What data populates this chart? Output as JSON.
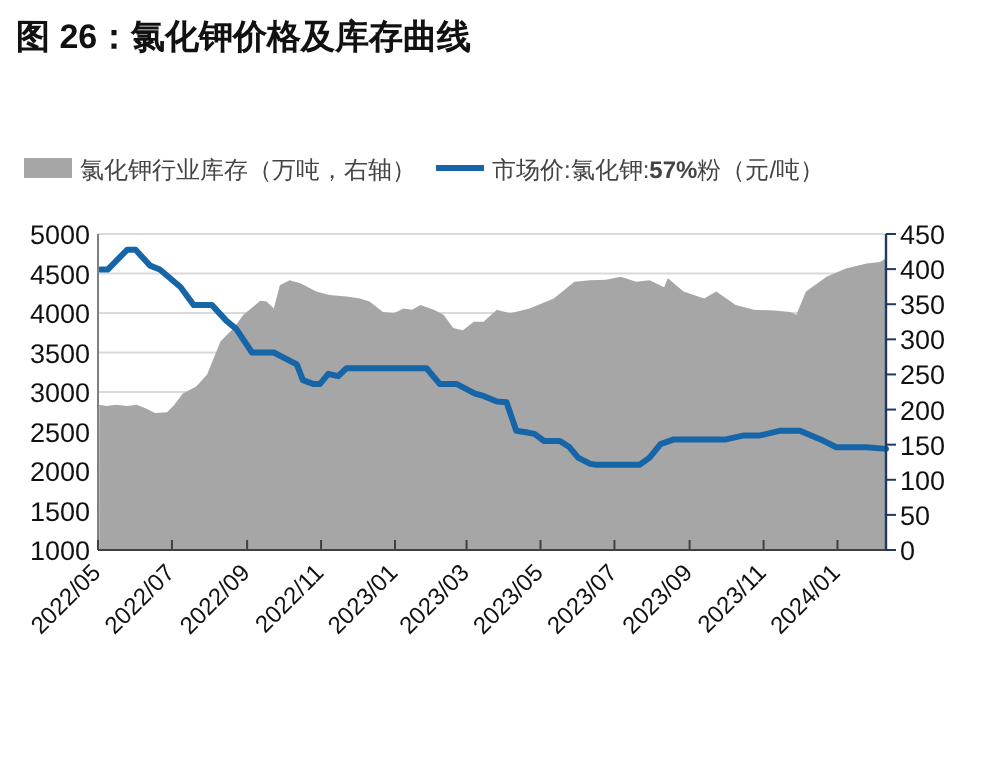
{
  "chart_data": {
    "type": "line",
    "title": "图 26：氯化钾价格及库存曲线",
    "legend": "top",
    "grid": "y",
    "xlim": [
      "2022-05-01",
      "2024-02-10"
    ],
    "xticks": [
      {
        "value": "2022-05-01",
        "label": "2022/05"
      },
      {
        "value": "2022-07-01",
        "label": "2022/07"
      },
      {
        "value": "2022-09-01",
        "label": "2022/09"
      },
      {
        "value": "2022-11-01",
        "label": "2022/11"
      },
      {
        "value": "2023-01-01",
        "label": "2023/01"
      },
      {
        "value": "2023-03-01",
        "label": "2023/03"
      },
      {
        "value": "2023-05-01",
        "label": "2023/05"
      },
      {
        "value": "2023-07-01",
        "label": "2023/07"
      },
      {
        "value": "2023-09-01",
        "label": "2023/09"
      },
      {
        "value": "2023-11-01",
        "label": "2023/11"
      },
      {
        "value": "2024-01-01",
        "label": "2024/01"
      }
    ],
    "ylim": [
      1000,
      5000
    ],
    "yticks": [
      1000,
      1500,
      2000,
      2500,
      3000,
      3500,
      4000,
      4500,
      5000
    ],
    "y2lim": [
      0,
      450
    ],
    "y2ticks": [
      0,
      50,
      100,
      150,
      200,
      250,
      300,
      350,
      400,
      450
    ],
    "series": [
      {
        "name": "氯化钾行业库存（万吨，右轴）",
        "type": "area",
        "axis": "y2",
        "color": "#a6a6a6",
        "x": [
          "2022-05-02",
          "2022-05-08",
          "2022-05-16",
          "2022-05-25",
          "2022-06-02",
          "2022-06-10",
          "2022-06-17",
          "2022-06-27",
          "2022-07-03",
          "2022-07-10",
          "2022-07-21",
          "2022-07-30",
          "2022-08-10",
          "2022-08-21",
          "2022-08-29",
          "2022-09-03",
          "2022-09-12",
          "2022-09-17",
          "2022-09-23",
          "2022-09-28",
          "2022-10-06",
          "2022-10-15",
          "2022-10-28",
          "2022-11-08",
          "2022-11-22",
          "2022-12-03",
          "2022-12-11",
          "2022-12-22",
          "2022-12-31",
          "2023-01-08",
          "2023-01-15",
          "2023-01-22",
          "2023-02-02",
          "2023-02-10",
          "2023-02-18",
          "2023-02-26",
          "2023-03-07",
          "2023-03-15",
          "2023-03-26",
          "2023-04-06",
          "2023-04-22",
          "2023-05-12",
          "2023-05-29",
          "2023-06-11",
          "2023-06-24",
          "2023-07-06",
          "2023-07-19",
          "2023-07-30",
          "2023-08-11",
          "2023-08-14",
          "2023-08-27",
          "2023-09-13",
          "2023-09-23",
          "2023-10-09",
          "2023-10-24",
          "2023-11-10",
          "2023-11-23",
          "2023-11-28",
          "2023-12-06",
          "2023-12-23",
          "2024-01-08",
          "2024-01-25",
          "2024-02-05",
          "2024-02-10"
        ],
        "values": [
          207,
          205,
          207,
          205,
          207,
          201,
          195,
          196,
          207,
          223,
          233,
          250,
          297,
          316,
          335,
          342,
          355,
          354,
          344,
          377,
          384,
          380,
          368,
          363,
          361,
          358,
          354,
          339,
          337,
          344,
          342,
          349,
          342,
          335,
          316,
          313,
          325,
          325,
          342,
          337,
          344,
          358,
          382,
          384,
          385,
          389,
          382,
          384,
          374,
          387,
          368,
          358,
          368,
          349,
          342,
          341,
          339,
          335,
          368,
          389,
          401,
          408,
          410,
          415
        ]
      },
      {
        "name": "市场价:氯化钾:**57%**粉（元/吨）",
        "color": "#1565a8",
        "x": [
          "2022-05-03",
          "2022-05-09",
          "2022-05-25",
          "2022-06-01",
          "2022-06-13",
          "2022-06-21",
          "2022-07-08",
          "2022-07-19",
          "2022-08-03",
          "2022-08-15",
          "2022-08-23",
          "2022-09-05",
          "2022-09-23",
          "2022-10-12",
          "2022-10-17",
          "2022-10-26",
          "2022-10-31",
          "2022-11-07",
          "2022-11-15",
          "2022-11-22",
          "2023-01-27",
          "2023-02-07",
          "2023-02-21",
          "2023-03-08",
          "2023-03-15",
          "2023-03-26",
          "2023-04-03",
          "2023-04-11",
          "2023-04-19",
          "2023-04-26",
          "2023-05-04",
          "2023-05-17",
          "2023-05-25",
          "2023-06-01",
          "2023-06-11",
          "2023-06-16",
          "2023-07-22",
          "2023-07-30",
          "2023-08-08",
          "2023-08-19",
          "2023-10-01",
          "2023-10-16",
          "2023-10-29",
          "2023-11-15",
          "2023-12-01",
          "2023-12-18",
          "2023-12-31",
          "2024-01-25",
          "2024-02-10"
        ],
        "values": [
          4550,
          4550,
          4800,
          4800,
          4600,
          4550,
          4330,
          4100,
          4100,
          3900,
          3800,
          3500,
          3500,
          3350,
          3150,
          3100,
          3100,
          3230,
          3200,
          3300,
          3300,
          3100,
          3100,
          2980,
          2950,
          2880,
          2870,
          2510,
          2490,
          2470,
          2380,
          2380,
          2300,
          2170,
          2090,
          2080,
          2080,
          2170,
          2340,
          2400,
          2400,
          2450,
          2450,
          2510,
          2510,
          2400,
          2300,
          2300,
          2280
        ]
      }
    ]
  }
}
